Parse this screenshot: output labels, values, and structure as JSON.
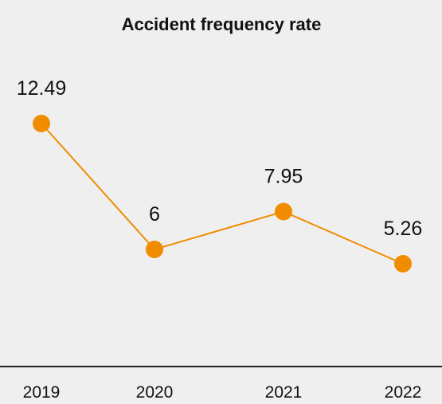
{
  "chart_data": {
    "type": "line",
    "title": "Accident frequency rate",
    "xlabel": "",
    "ylabel": "",
    "categories": [
      "2019",
      "2020",
      "2021",
      "2022"
    ],
    "values": [
      12.49,
      6,
      7.95,
      5.26
    ],
    "data_labels": [
      "12.49",
      "6",
      "7.95",
      "5.26"
    ],
    "color": "#f08c00",
    "grid": false,
    "legend": "none"
  }
}
